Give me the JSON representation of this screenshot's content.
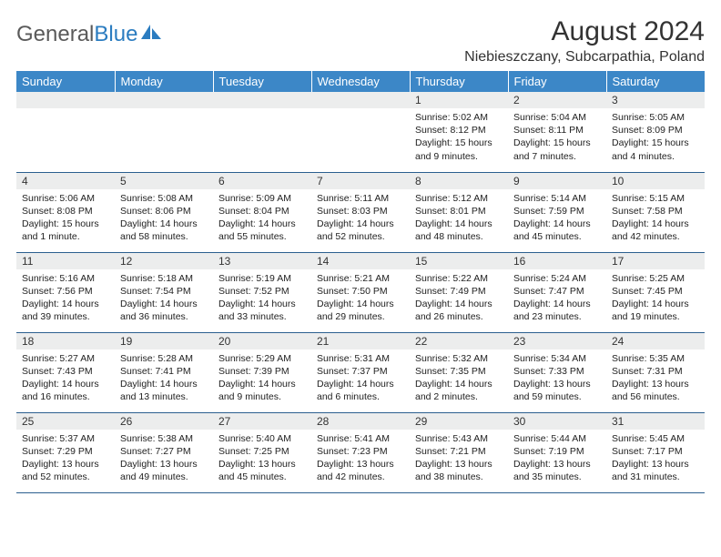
{
  "brand": {
    "part1": "General",
    "part2": "Blue"
  },
  "title": "August 2024",
  "location": "Niebieszczany, Subcarpathia, Poland",
  "colors": {
    "header_bg": "#3c87c7",
    "header_text": "#ffffff",
    "daynum_bg": "#eceded",
    "rule": "#2b5f8f",
    "brand_gray": "#5a5a5a",
    "brand_blue": "#2b7cc0"
  },
  "dayNames": [
    "Sunday",
    "Monday",
    "Tuesday",
    "Wednesday",
    "Thursday",
    "Friday",
    "Saturday"
  ],
  "startWeekday": 4,
  "daysInMonth": 31,
  "days": {
    "1": {
      "sunrise": "5:02 AM",
      "sunset": "8:12 PM",
      "daylight": "15 hours and 9 minutes."
    },
    "2": {
      "sunrise": "5:04 AM",
      "sunset": "8:11 PM",
      "daylight": "15 hours and 7 minutes."
    },
    "3": {
      "sunrise": "5:05 AM",
      "sunset": "8:09 PM",
      "daylight": "15 hours and 4 minutes."
    },
    "4": {
      "sunrise": "5:06 AM",
      "sunset": "8:08 PM",
      "daylight": "15 hours and 1 minute."
    },
    "5": {
      "sunrise": "5:08 AM",
      "sunset": "8:06 PM",
      "daylight": "14 hours and 58 minutes."
    },
    "6": {
      "sunrise": "5:09 AM",
      "sunset": "8:04 PM",
      "daylight": "14 hours and 55 minutes."
    },
    "7": {
      "sunrise": "5:11 AM",
      "sunset": "8:03 PM",
      "daylight": "14 hours and 52 minutes."
    },
    "8": {
      "sunrise": "5:12 AM",
      "sunset": "8:01 PM",
      "daylight": "14 hours and 48 minutes."
    },
    "9": {
      "sunrise": "5:14 AM",
      "sunset": "7:59 PM",
      "daylight": "14 hours and 45 minutes."
    },
    "10": {
      "sunrise": "5:15 AM",
      "sunset": "7:58 PM",
      "daylight": "14 hours and 42 minutes."
    },
    "11": {
      "sunrise": "5:16 AM",
      "sunset": "7:56 PM",
      "daylight": "14 hours and 39 minutes."
    },
    "12": {
      "sunrise": "5:18 AM",
      "sunset": "7:54 PM",
      "daylight": "14 hours and 36 minutes."
    },
    "13": {
      "sunrise": "5:19 AM",
      "sunset": "7:52 PM",
      "daylight": "14 hours and 33 minutes."
    },
    "14": {
      "sunrise": "5:21 AM",
      "sunset": "7:50 PM",
      "daylight": "14 hours and 29 minutes."
    },
    "15": {
      "sunrise": "5:22 AM",
      "sunset": "7:49 PM",
      "daylight": "14 hours and 26 minutes."
    },
    "16": {
      "sunrise": "5:24 AM",
      "sunset": "7:47 PM",
      "daylight": "14 hours and 23 minutes."
    },
    "17": {
      "sunrise": "5:25 AM",
      "sunset": "7:45 PM",
      "daylight": "14 hours and 19 minutes."
    },
    "18": {
      "sunrise": "5:27 AM",
      "sunset": "7:43 PM",
      "daylight": "14 hours and 16 minutes."
    },
    "19": {
      "sunrise": "5:28 AM",
      "sunset": "7:41 PM",
      "daylight": "14 hours and 13 minutes."
    },
    "20": {
      "sunrise": "5:29 AM",
      "sunset": "7:39 PM",
      "daylight": "14 hours and 9 minutes."
    },
    "21": {
      "sunrise": "5:31 AM",
      "sunset": "7:37 PM",
      "daylight": "14 hours and 6 minutes."
    },
    "22": {
      "sunrise": "5:32 AM",
      "sunset": "7:35 PM",
      "daylight": "14 hours and 2 minutes."
    },
    "23": {
      "sunrise": "5:34 AM",
      "sunset": "7:33 PM",
      "daylight": "13 hours and 59 minutes."
    },
    "24": {
      "sunrise": "5:35 AM",
      "sunset": "7:31 PM",
      "daylight": "13 hours and 56 minutes."
    },
    "25": {
      "sunrise": "5:37 AM",
      "sunset": "7:29 PM",
      "daylight": "13 hours and 52 minutes."
    },
    "26": {
      "sunrise": "5:38 AM",
      "sunset": "7:27 PM",
      "daylight": "13 hours and 49 minutes."
    },
    "27": {
      "sunrise": "5:40 AM",
      "sunset": "7:25 PM",
      "daylight": "13 hours and 45 minutes."
    },
    "28": {
      "sunrise": "5:41 AM",
      "sunset": "7:23 PM",
      "daylight": "13 hours and 42 minutes."
    },
    "29": {
      "sunrise": "5:43 AM",
      "sunset": "7:21 PM",
      "daylight": "13 hours and 38 minutes."
    },
    "30": {
      "sunrise": "5:44 AM",
      "sunset": "7:19 PM",
      "daylight": "13 hours and 35 minutes."
    },
    "31": {
      "sunrise": "5:45 AM",
      "sunset": "7:17 PM",
      "daylight": "13 hours and 31 minutes."
    }
  },
  "labels": {
    "sunrise": "Sunrise:",
    "sunset": "Sunset:",
    "daylight": "Daylight:"
  }
}
